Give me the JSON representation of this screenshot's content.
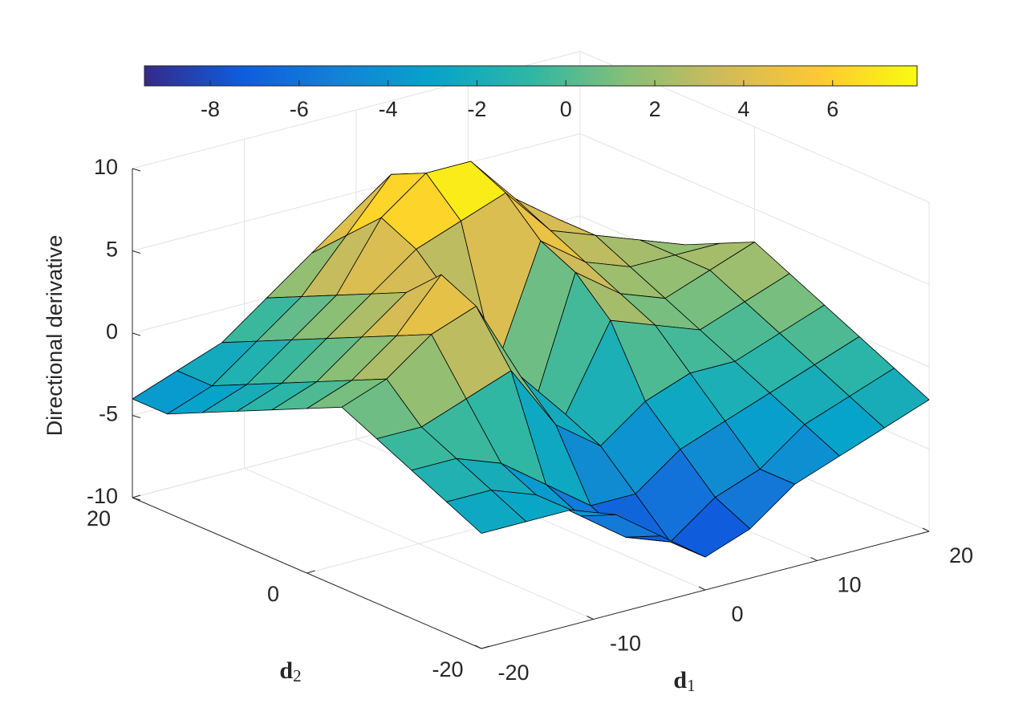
{
  "chart_data": {
    "type": "surface",
    "zlabel": "Directional derivative",
    "xlabel": {
      "base": "d",
      "sub": "1"
    },
    "ylabel": {
      "base": "d",
      "sub": "2"
    },
    "x": [
      -20,
      -16,
      -12,
      -8,
      -4,
      0,
      4,
      8,
      12,
      16,
      20
    ],
    "y": [
      -20,
      -16,
      -12,
      -8,
      -4,
      0,
      4,
      8,
      12,
      16,
      20
    ],
    "z": [
      [
        -3,
        -3,
        -3,
        -4,
        -6,
        -8,
        -7,
        -5,
        -4,
        -3,
        -2
      ],
      [
        -2,
        -2,
        -3,
        -5,
        -7,
        -8,
        -6,
        -5,
        -3,
        -2,
        -1
      ],
      [
        -1,
        -1,
        -2,
        -4,
        -6,
        -6,
        -4,
        -3,
        -2,
        -1,
        0
      ],
      [
        0,
        0,
        1,
        2,
        -2,
        -4,
        -2,
        -1,
        -1,
        0,
        1
      ],
      [
        1,
        2,
        4,
        5,
        0,
        -3,
        2,
        1,
        0,
        1,
        2
      ],
      [
        0,
        1,
        3,
        6,
        1,
        -4,
        4,
        2,
        1,
        2,
        3
      ],
      [
        -1,
        0,
        2,
        4,
        3,
        -2,
        5,
        3,
        2,
        2,
        2
      ],
      [
        -2,
        -1,
        1,
        3,
        5,
        6,
        7,
        4,
        3,
        2,
        1
      ],
      [
        -3,
        -2,
        0,
        2,
        6,
        8,
        8,
        5,
        3,
        1,
        0
      ],
      [
        -4,
        -3,
        -1,
        1,
        4,
        7,
        6,
        4,
        2,
        0,
        -1
      ],
      [
        -4,
        -3,
        -2,
        0,
        2,
        4,
        3,
        2,
        1,
        0,
        -1
      ]
    ],
    "xlim": [
      -20,
      20
    ],
    "ylim": [
      -20,
      20
    ],
    "zlim": [
      -10,
      10
    ],
    "xticks": [
      -20,
      -10,
      0,
      10,
      20
    ],
    "yticks": [
      -20,
      0,
      20
    ],
    "zticks": [
      -10,
      -5,
      0,
      5,
      10
    ],
    "clim": [
      -9.48,
      7.9
    ],
    "cticks": [
      -8,
      -6,
      -4,
      -2,
      0,
      2,
      4,
      6
    ],
    "colormap": [
      "#352a87",
      "#0f5cdd",
      "#1481d6",
      "#06a4ca",
      "#2eb7a4",
      "#87bf77",
      "#d1bb59",
      "#fec832",
      "#f9fb0e"
    ],
    "grid": true,
    "edge_color": "#000000"
  }
}
